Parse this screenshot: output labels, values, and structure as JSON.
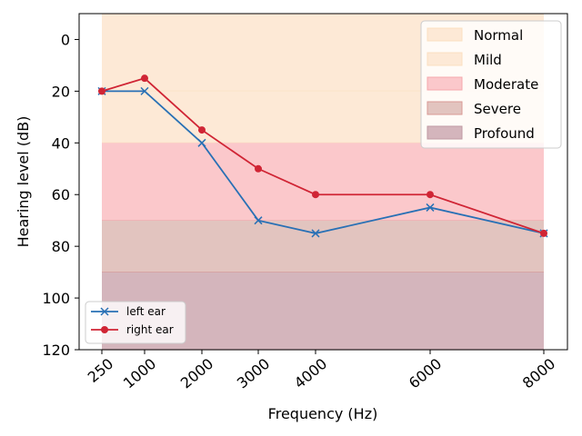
{
  "chart_data": {
    "type": "line",
    "title": "",
    "xlabel": "Frequency (Hz)",
    "ylabel": "Hearing level (dB)",
    "x_tick_labels": [
      "250",
      "1000",
      "2000",
      "3000",
      "4000",
      "6000",
      "8000"
    ],
    "y_ticks": [
      0,
      20,
      40,
      60,
      80,
      100,
      120
    ],
    "y_tick_labels": [
      "0",
      "20",
      "40",
      "60",
      "80",
      "100",
      "120"
    ],
    "ylim": [
      120,
      -10
    ],
    "y_inverted": true,
    "grid": false,
    "bands": [
      {
        "name": "Normal",
        "from": -10,
        "to": 20,
        "color": "#fde9d6",
        "edge": "#fbe0c0"
      },
      {
        "name": "Mild",
        "from": 20,
        "to": 40,
        "color": "#fde9d6",
        "edge": "#fbdfc0"
      },
      {
        "name": "Moderate",
        "from": 40,
        "to": 70,
        "color": "#fbc8cb",
        "edge": "#f5a8ad"
      },
      {
        "name": "Severe",
        "from": 70,
        "to": 90,
        "color": "#e2c4bf",
        "edge": "#d99a94"
      },
      {
        "name": "Profound",
        "from": 90,
        "to": 120,
        "color": "#d4b5bc",
        "edge": "#c09aa3"
      }
    ],
    "series": [
      {
        "name": "left ear",
        "values": [
          20,
          20,
          40,
          70,
          75,
          65,
          75
        ],
        "color": "#2870b5",
        "marker": "x"
      },
      {
        "name": "right ear",
        "values": [
          20,
          15,
          35,
          50,
          60,
          60,
          75
        ],
        "color": "#d02535",
        "marker": "o"
      }
    ],
    "band_legend_position": "top-right",
    "series_legend_position": "lower-left"
  }
}
